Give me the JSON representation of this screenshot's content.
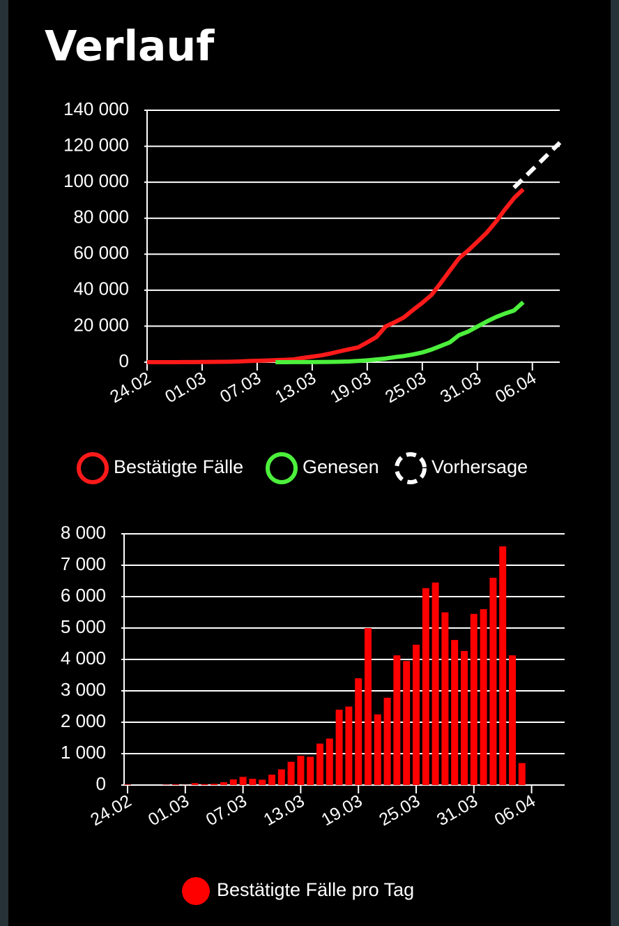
{
  "header": {
    "title": "Verlauf"
  },
  "chart_data": [
    {
      "type": "line",
      "categories": [
        "24.02",
        null,
        null,
        null,
        null,
        null,
        "01.03",
        null,
        null,
        null,
        null,
        null,
        "07.03",
        null,
        null,
        null,
        null,
        null,
        "13.03",
        null,
        null,
        null,
        null,
        null,
        "19.03",
        null,
        null,
        null,
        null,
        null,
        "25.03",
        null,
        null,
        null,
        null,
        null,
        "31.03",
        null,
        null,
        null,
        null,
        null,
        "06.04",
        null,
        null,
        null
      ],
      "series": [
        {
          "name": "Bestätigte Fälle",
          "color": "#ff1a1a",
          "dashed": false,
          "values": [
            16,
            16,
            18,
            21,
            26,
            48,
            117,
            150,
            188,
            240,
            400,
            639,
            795,
            902,
            1139,
            1296,
            1567,
            2369,
            3062,
            3795,
            4838,
            6012,
            7156,
            8198,
            10999,
            13957,
            19848,
            22213,
            24873,
            29056,
            32986,
            37323,
            43938,
            50871,
            57695,
            62095,
            66885,
            71808,
            77872,
            84794,
            91159,
            96092,
            null,
            null,
            null,
            null
          ]
        },
        {
          "name": "Genesen",
          "color": "#4cf03c",
          "dashed": false,
          "values": [
            null,
            null,
            null,
            null,
            null,
            null,
            null,
            null,
            null,
            null,
            null,
            null,
            null,
            null,
            16,
            18,
            25,
            46,
            60,
            100,
            150,
            250,
            400,
            700,
            1000,
            1500,
            2000,
            2800,
            3400,
            4300,
            5400,
            7000,
            9000,
            11000,
            15000,
            17000,
            19800,
            22500,
            25000,
            27000,
            28700,
            33300,
            null,
            null,
            null,
            null
          ]
        },
        {
          "name": "Vorhersage",
          "color": "#ffffff",
          "dashed": true,
          "values": [
            null,
            null,
            null,
            null,
            null,
            null,
            null,
            null,
            null,
            null,
            null,
            null,
            null,
            null,
            null,
            null,
            null,
            null,
            null,
            null,
            null,
            null,
            null,
            null,
            null,
            null,
            null,
            null,
            null,
            null,
            null,
            null,
            null,
            null,
            null,
            null,
            null,
            null,
            null,
            null,
            97000,
            102000,
            107000,
            112000,
            117000,
            122000
          ]
        }
      ],
      "ylim": [
        0,
        140000
      ],
      "yticks": [
        0,
        {
          "value": 20000,
          "label": "20 000"
        },
        {
          "value": 40000,
          "label": "40 000"
        },
        {
          "value": 60000,
          "label": "60 000"
        },
        {
          "value": 80000,
          "label": "80 000"
        },
        {
          "value": 100000,
          "label": "100 000"
        },
        {
          "value": 120000,
          "label": "120 000"
        },
        {
          "value": 140000,
          "label": "140 000"
        }
      ],
      "grid": true
    },
    {
      "type": "bar",
      "categories": [
        "24.02",
        null,
        null,
        null,
        null,
        null,
        "01.03",
        null,
        null,
        null,
        null,
        null,
        "07.03",
        null,
        null,
        null,
        null,
        null,
        "13.03",
        null,
        null,
        null,
        null,
        null,
        "19.03",
        null,
        null,
        null,
        null,
        null,
        "25.03",
        null,
        null,
        null,
        null,
        null,
        "31.03",
        null,
        null,
        null,
        null,
        null,
        "06.04",
        null,
        null,
        null
      ],
      "series": [
        {
          "name": "Bestätigte Fälle pro Tag",
          "color": "#ff0000",
          "values": [
            15,
            0,
            0,
            0,
            10,
            20,
            5,
            60,
            30,
            40,
            90,
            180,
            260,
            200,
            170,
            330,
            500,
            740,
            930,
            900,
            1320,
            1480,
            2400,
            2500,
            3400,
            5000,
            2250,
            2780,
            4130,
            3950,
            4470,
            6270,
            6450,
            5500,
            4620,
            4270,
            5450,
            5600,
            6600,
            7600,
            4130,
            700,
            null,
            null,
            null,
            null
          ]
        }
      ],
      "ylim": [
        0,
        8000
      ],
      "yticks": [
        0,
        {
          "value": 1000,
          "label": "1 000"
        },
        {
          "value": 2000,
          "label": "2 000"
        },
        {
          "value": 3000,
          "label": "3 000"
        },
        {
          "value": 4000,
          "label": "4 000"
        },
        {
          "value": 5000,
          "label": "5 000"
        },
        {
          "value": 6000,
          "label": "6 000"
        },
        {
          "value": 7000,
          "label": "7 000"
        },
        {
          "value": 8000,
          "label": "8 000"
        }
      ],
      "grid": true
    }
  ]
}
